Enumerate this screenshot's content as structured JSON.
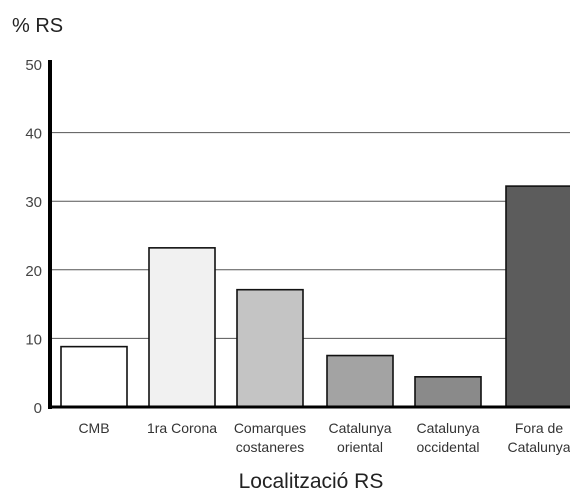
{
  "chart_data": {
    "type": "bar",
    "title": "",
    "ylabel": "% RS",
    "xlabel": "Localització RS",
    "ylim": [
      0,
      50
    ],
    "yticks": [
      0,
      10,
      20,
      30,
      40,
      50
    ],
    "grid": true,
    "categories": [
      [
        "CMB"
      ],
      [
        "1ra Corona"
      ],
      [
        "Comarques",
        "costaneres"
      ],
      [
        "Catalunya",
        "oriental"
      ],
      [
        "Catalunya",
        "occidental"
      ],
      [
        "Fora de",
        "Catalunya"
      ]
    ],
    "values": [
      8.8,
      23.2,
      17.1,
      7.5,
      4.4,
      32.2
    ],
    "bar_colors": [
      "#ffffff",
      "#f1f1f1",
      "#c4c4c4",
      "#a3a3a3",
      "#8a8a8a",
      "#5c5c5c"
    ]
  }
}
